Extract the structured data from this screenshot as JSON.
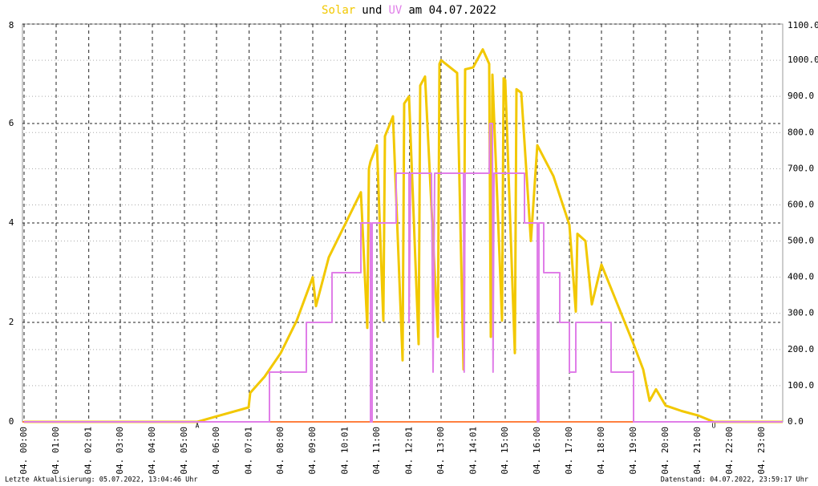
{
  "chart_data": {
    "type": "line",
    "title_parts": [
      "Solar",
      "und",
      "UV",
      "am 04.07.2022"
    ],
    "footer_left": "Letzte Aktualisierung: 05.07.2022, 13:04:46 Uhr",
    "footer_right": "Datenstand: 04.07.2022, 23:59:17 Uhr",
    "xlim": [
      -0.05,
      23.65
    ],
    "xticks": [
      {
        "value": 0,
        "label": "04. 00:00"
      },
      {
        "value": 1,
        "label": "04. 01:00"
      },
      {
        "value": 2.017,
        "label": "04. 02:01"
      },
      {
        "value": 3,
        "label": "04. 03:00"
      },
      {
        "value": 4,
        "label": "04. 04:00"
      },
      {
        "value": 5,
        "label": "04. 05:00"
      },
      {
        "value": 6,
        "label": "04. 06:00"
      },
      {
        "value": 7.017,
        "label": "04. 07:01"
      },
      {
        "value": 8,
        "label": "04. 08:00"
      },
      {
        "value": 9,
        "label": "04. 09:00"
      },
      {
        "value": 10.017,
        "label": "04. 10:01"
      },
      {
        "value": 11,
        "label": "04. 11:00"
      },
      {
        "value": 12.017,
        "label": "04. 12:01"
      },
      {
        "value": 13,
        "label": "04. 13:00"
      },
      {
        "value": 14.017,
        "label": "04. 14:01"
      },
      {
        "value": 15,
        "label": "04. 15:00"
      },
      {
        "value": 16,
        "label": "04. 16:00"
      },
      {
        "value": 17,
        "label": "04. 17:00"
      },
      {
        "value": 18,
        "label": "04. 18:00"
      },
      {
        "value": 19,
        "label": "04. 19:00"
      },
      {
        "value": 20,
        "label": "04. 20:00"
      },
      {
        "value": 21,
        "label": "04. 21:00"
      },
      {
        "value": 22,
        "label": "04. 22:00"
      },
      {
        "value": 23,
        "label": "04. 23:00"
      }
    ],
    "ylim": [
      0,
      8
    ],
    "yticks": [
      0,
      2,
      4,
      6,
      8
    ],
    "y2lim": [
      0,
      1100
    ],
    "y2ticks": [
      {
        "value": 0,
        "label": "0.0"
      },
      {
        "value": 100,
        "label": "100.0"
      },
      {
        "value": 200,
        "label": "200.0"
      },
      {
        "value": 300,
        "label": "300.0"
      },
      {
        "value": 400,
        "label": "400.0"
      },
      {
        "value": 500,
        "label": "500.0"
      },
      {
        "value": 600,
        "label": "600.0"
      },
      {
        "value": 700,
        "label": "700.0"
      },
      {
        "value": 800,
        "label": "800.0"
      },
      {
        "value": 900,
        "label": "900.0"
      },
      {
        "value": 1000,
        "label": "1000.0"
      },
      {
        "value": 1100,
        "label": "1100.0"
      }
    ],
    "grid": true,
    "annotations": [
      {
        "text": "A",
        "x": 5.4
      },
      {
        "text": "U",
        "x": 21.5
      }
    ],
    "series": [
      {
        "name": "Solar",
        "color": "#f2c800",
        "axis": "y2",
        "x": [
          0,
          5.4,
          6,
          7.0,
          7.05,
          7.5,
          8,
          8.5,
          9,
          9.1,
          9.5,
          10,
          10.5,
          10.7,
          10.75,
          10.8,
          11,
          11.2,
          11.25,
          11.5,
          11.8,
          11.85,
          12,
          12.3,
          12.35,
          12.5,
          12.9,
          12.95,
          13,
          13.5,
          13.7,
          13.75,
          14,
          14.3,
          14.5,
          14.55,
          14.6,
          14.9,
          14.95,
          15,
          15.3,
          15.35,
          15.5,
          15.8,
          16,
          16.5,
          17,
          17.2,
          17.25,
          17.5,
          17.7,
          18,
          18.5,
          19,
          19.3,
          19.5,
          19.7,
          20,
          20.5,
          21,
          21.5,
          23.65
        ],
        "values": [
          0,
          0,
          15,
          40,
          80,
          125,
          190,
          280,
          400,
          320,
          455,
          545,
          635,
          260,
          700,
          720,
          765,
          280,
          790,
          845,
          170,
          880,
          900,
          215,
          930,
          955,
          235,
          990,
          1000,
          965,
          145,
          975,
          980,
          1030,
          990,
          235,
          960,
          280,
          950,
          945,
          190,
          920,
          910,
          500,
          765,
          680,
          545,
          305,
          520,
          500,
          325,
          435,
          325,
          215,
          145,
          58,
          90,
          45,
          30,
          18,
          0,
          0
        ]
      },
      {
        "name": "UV",
        "color": "#e07ee8",
        "axis": "y",
        "x": [
          0,
          7.65,
          7.65,
          8.8,
          8.8,
          9.6,
          9.6,
          10.5,
          10.5,
          10.8,
          10.8,
          10.85,
          10.85,
          11.6,
          11.6,
          12.0,
          12.0,
          12.05,
          12.7,
          12.75,
          12.8,
          13.7,
          13.72,
          13.75,
          14.5,
          14.52,
          14.6,
          14.62,
          14.65,
          15.6,
          15.6,
          16.0,
          16.0,
          16.05,
          16.05,
          16.2,
          16.2,
          16.7,
          16.7,
          17.0,
          17.0,
          17.2,
          17.2,
          18.3,
          18.3,
          19.0,
          19.0,
          23.65
        ],
        "values": [
          0,
          0,
          1,
          1,
          2,
          2,
          3,
          3,
          4,
          4,
          0,
          0,
          4,
          4,
          5,
          5,
          2,
          5,
          5,
          1,
          5,
          5,
          1,
          5,
          5,
          6,
          6,
          1,
          5,
          5,
          4,
          4,
          0,
          0,
          4,
          4,
          3,
          3,
          2,
          2,
          1,
          1,
          2,
          2,
          1,
          1,
          0,
          0
        ]
      }
    ]
  }
}
